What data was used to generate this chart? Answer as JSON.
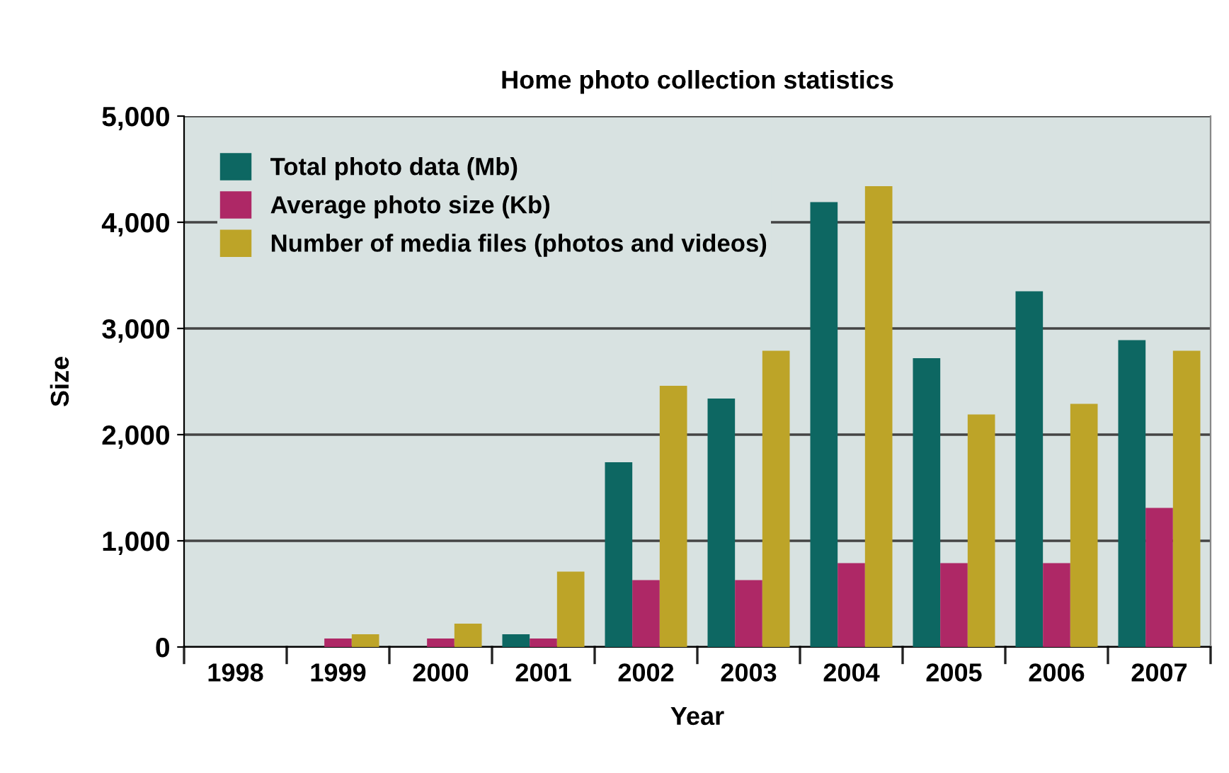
{
  "chart_data": {
    "type": "bar",
    "title": "Home photo collection statistics",
    "xlabel": "Year",
    "ylabel": "Size",
    "categories": [
      "1998",
      "1999",
      "2000",
      "2001",
      "2002",
      "2003",
      "2004",
      "2005",
      "2006",
      "2007"
    ],
    "series": [
      {
        "name": "Total photo data (Mb)",
        "color": "#0d6762",
        "values": [
          0,
          0,
          0,
          120,
          1740,
          2340,
          4190,
          2720,
          3350,
          2890
        ]
      },
      {
        "name": "Average photo size (Kb)",
        "color": "#ae2866",
        "values": [
          0,
          80,
          80,
          80,
          630,
          630,
          790,
          790,
          790,
          1310
        ]
      },
      {
        "name": "Number of media files (photos and videos)",
        "color": "#bda428",
        "values": [
          0,
          120,
          220,
          710,
          2460,
          2790,
          4340,
          2190,
          2290,
          2790
        ]
      }
    ],
    "ylim": [
      0,
      5000
    ],
    "yticks": [
      {
        "value": 0,
        "label": "0"
      },
      {
        "value": 1000,
        "label": "1,000"
      },
      {
        "value": 2000,
        "label": "2,000"
      },
      {
        "value": 3000,
        "label": "3,000"
      },
      {
        "value": 4000,
        "label": "4,000"
      },
      {
        "value": 5000,
        "label": "5,000"
      }
    ],
    "grid": "y",
    "legend": "top left"
  }
}
